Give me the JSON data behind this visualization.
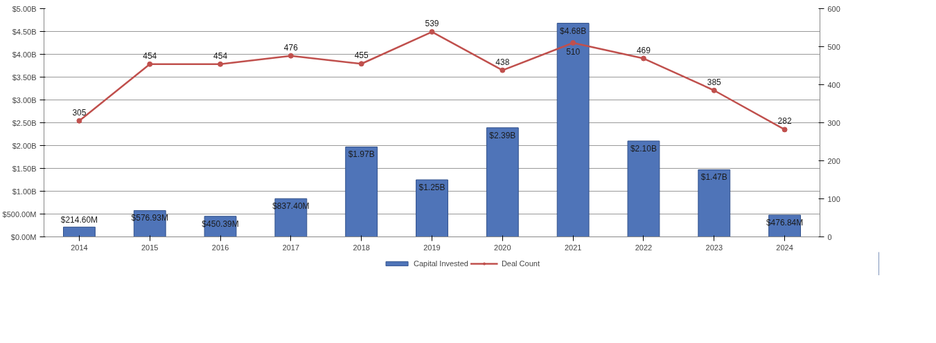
{
  "chart_data": {
    "type": "bar",
    "categories": [
      "2014",
      "2015",
      "2016",
      "2017",
      "2018",
      "2019",
      "2020",
      "2021",
      "2022",
      "2023",
      "2024"
    ],
    "series": [
      {
        "name": "Capital Invested",
        "color": "#4f74b8",
        "values": [
          214600000,
          576930000,
          450390000,
          837400000,
          1970000000,
          1250000000,
          2390000000,
          4680000000,
          2100000000,
          1470000000,
          476840000
        ],
        "value_labels": [
          "$214.60M",
          "$576.93M",
          "$450.39M",
          "$837.40M",
          "$1.97B",
          "$1.25B",
          "$2.39B",
          "$4.68B",
          "$2.10B",
          "$1.47B",
          "$476.84M"
        ]
      },
      {
        "name": "Deal Count",
        "type": "line",
        "axis": "y2",
        "color": "#c0504d",
        "values": [
          305,
          454,
          454,
          476,
          455,
          539,
          438,
          510,
          469,
          385,
          282
        ],
        "value_labels": [
          "305",
          "454",
          "454",
          "476",
          "455",
          "539",
          "438",
          "510",
          "469",
          "385",
          "282"
        ]
      }
    ],
    "ylim": [
      0,
      5000000000
    ],
    "yticks": [
      {
        "value": 0,
        "label": "$0.00M"
      },
      {
        "value": 500000000,
        "label": "$500.00M"
      },
      {
        "value": 1000000000,
        "label": "$1.00B"
      },
      {
        "value": 1500000000,
        "label": "$1.50B"
      },
      {
        "value": 2000000000,
        "label": "$2.00B"
      },
      {
        "value": 2500000000,
        "label": "$2.50B"
      },
      {
        "value": 3000000000,
        "label": "$3.00B"
      },
      {
        "value": 3500000000,
        "label": "$3.50B"
      },
      {
        "value": 4000000000,
        "label": "$4.00B"
      },
      {
        "value": 4500000000,
        "label": "$4.50B"
      },
      {
        "value": 5000000000,
        "label": "$5.00B"
      }
    ],
    "y2lim": [
      0,
      600
    ],
    "y2ticks": [
      0,
      100,
      200,
      300,
      400,
      500,
      600
    ],
    "grid": "y",
    "legend": "bottom",
    "marker": "circle",
    "line_style": "solid"
  }
}
